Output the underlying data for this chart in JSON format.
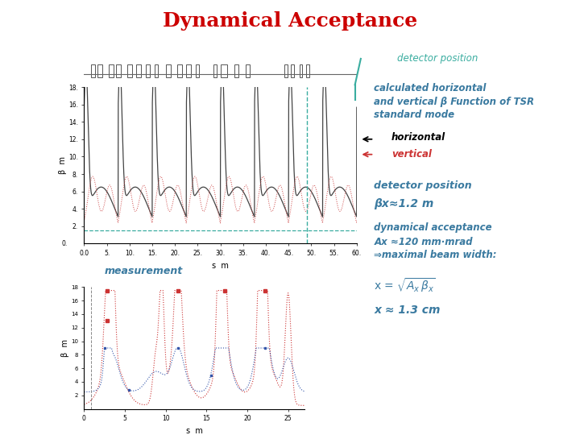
{
  "title": "Dynamical Acceptance",
  "title_color": "#cc0000",
  "title_fontsize": 18,
  "bg_color": "#ffffff",
  "teal": "#3aada0",
  "blue": "#3a7aa0",
  "black": "#222222",
  "red": "#cc3333",
  "anno_detector_pos": "detector position",
  "anno_calc_line1": "calculated horizontal",
  "anno_calc_line2": "and vertical β Function of TSR",
  "anno_calc_line3": "standard mode",
  "anno_horizontal": "horizontal",
  "anno_vertical": "vertical",
  "anno_det_pos2": "detector position",
  "anno_beta": "βx≈1.2 m",
  "anno_dyn1": "dynamical acceptance",
  "anno_dyn2": "Ax ≈120 mm·mrad",
  "anno_dyn3": "⇒maximal beam width:",
  "anno_result": "x ≈ 1.3 cm",
  "measurement_label": "measurement",
  "main_xlim": [
    0,
    60
  ],
  "main_ylim": [
    0,
    18
  ],
  "main_xticks": [
    0.0,
    5,
    10,
    15,
    20,
    25,
    30,
    35,
    40,
    45,
    50,
    55,
    60
  ],
  "main_yticks": [
    2,
    4,
    6,
    8,
    10,
    12,
    14,
    16,
    18
  ],
  "main_xlabel": "s  m",
  "main_ylabel": "β  m",
  "meas_xlim": [
    0,
    27
  ],
  "meas_ylim": [
    0,
    18
  ],
  "meas_xticks": [
    0,
    5,
    10,
    15,
    20,
    25
  ],
  "meas_yticks": [
    2,
    4,
    6,
    8,
    10,
    12,
    14,
    16,
    18
  ],
  "meas_xlabel": "s  m",
  "meas_ylabel": "β  m"
}
